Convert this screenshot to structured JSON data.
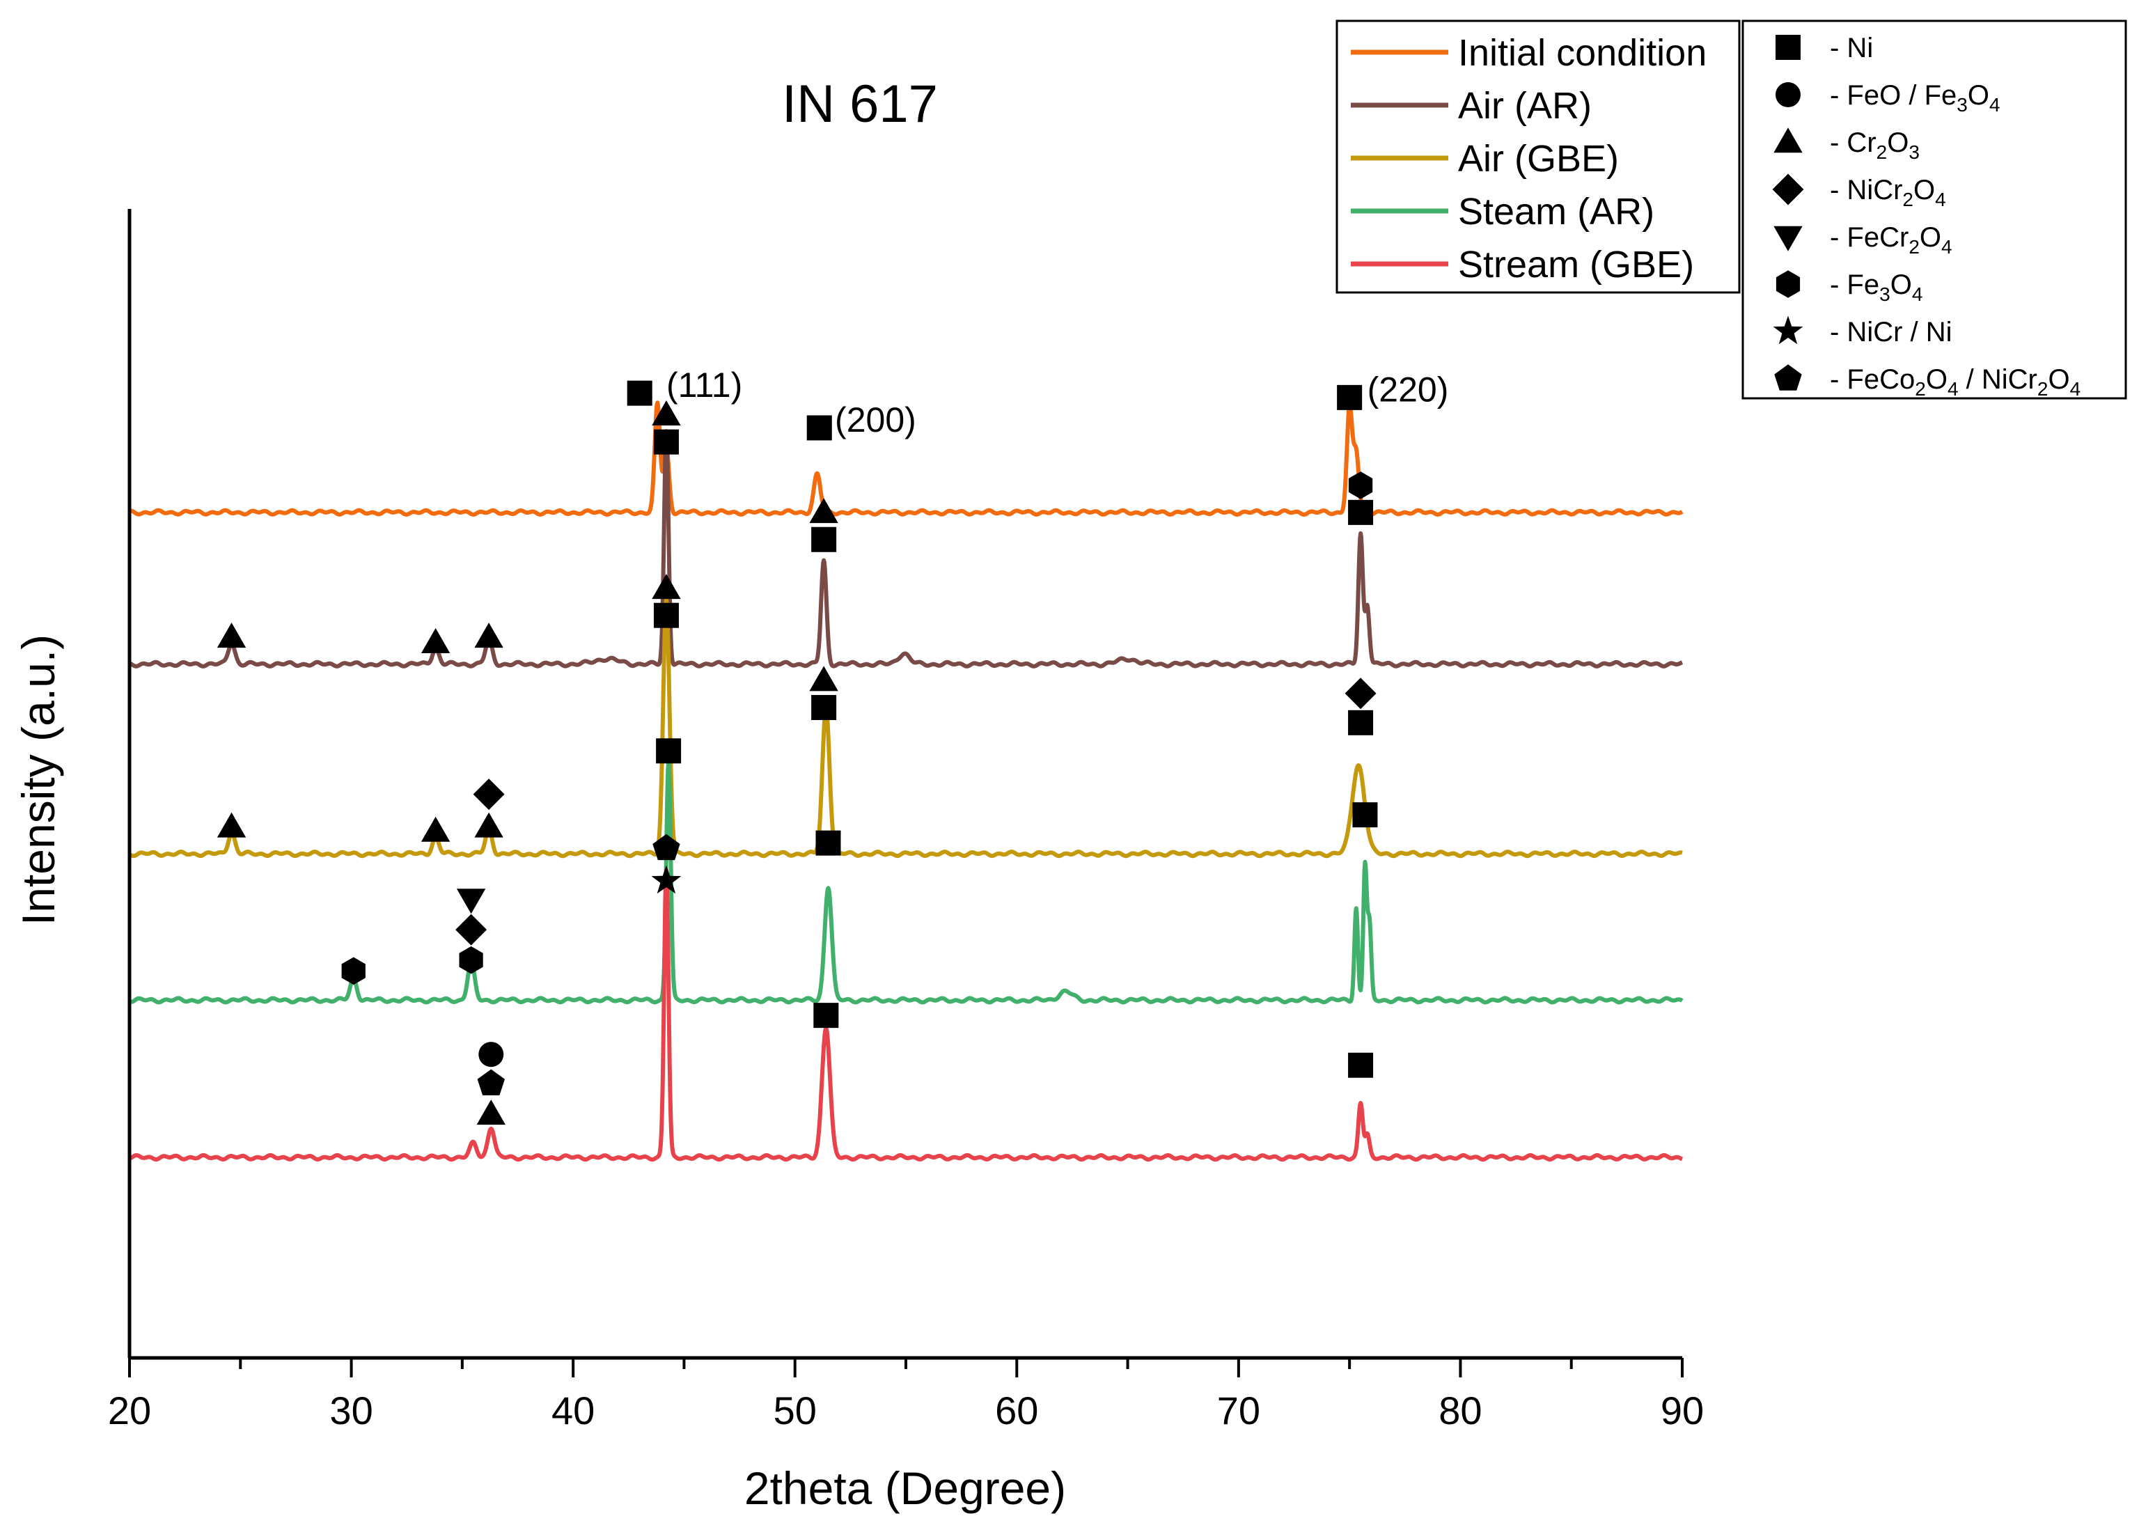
{
  "chart_data": {
    "type": "line",
    "title": "IN 617",
    "xlabel": "2theta (Degree)",
    "ylabel": "Intensity (a.u.)",
    "xlim": [
      20,
      90
    ],
    "xticks": [
      "20",
      "30",
      "40",
      "50",
      "60",
      "70",
      "80",
      "90"
    ],
    "yticks": [],
    "grid": false,
    "legend_position": "top-right",
    "series": [
      {
        "name": "Initial condition",
        "color": "#F26B0F",
        "baseline": 5.6,
        "noise": 0.02,
        "peaks": [
          {
            "x": 43.8,
            "h": 1.0,
            "w": 0.12
          },
          {
            "x": 44.2,
            "h": 0.6,
            "w": 0.12
          },
          {
            "x": 51.0,
            "h": 0.35,
            "w": 0.15
          },
          {
            "x": 75.0,
            "h": 0.95,
            "w": 0.12
          },
          {
            "x": 75.3,
            "h": 0.55,
            "w": 0.12
          }
        ]
      },
      {
        "name": "Air (AR)",
        "color": "#7A4A47",
        "baseline": 4.2,
        "noise": 0.02,
        "peaks": [
          {
            "x": 24.6,
            "h": 0.2,
            "w": 0.15
          },
          {
            "x": 33.8,
            "h": 0.15,
            "w": 0.15
          },
          {
            "x": 36.2,
            "h": 0.22,
            "w": 0.15
          },
          {
            "x": 41.5,
            "h": 0.05,
            "w": 0.5
          },
          {
            "x": 44.2,
            "h": 2.15,
            "w": 0.1
          },
          {
            "x": 51.3,
            "h": 0.95,
            "w": 0.12
          },
          {
            "x": 54.9,
            "h": 0.1,
            "w": 0.25
          },
          {
            "x": 65.0,
            "h": 0.05,
            "w": 0.4
          },
          {
            "x": 75.5,
            "h": 1.2,
            "w": 0.1
          },
          {
            "x": 75.8,
            "h": 0.55,
            "w": 0.1
          }
        ]
      },
      {
        "name": "Air (GBE)",
        "color": "#C49A0C",
        "baseline": 2.45,
        "noise": 0.02,
        "peaks": [
          {
            "x": 24.6,
            "h": 0.2,
            "w": 0.15
          },
          {
            "x": 33.8,
            "h": 0.15,
            "w": 0.15
          },
          {
            "x": 36.2,
            "h": 0.22,
            "w": 0.15
          },
          {
            "x": 44.2,
            "h": 2.35,
            "w": 0.14
          },
          {
            "x": 51.4,
            "h": 1.35,
            "w": 0.16
          },
          {
            "x": 75.4,
            "h": 0.82,
            "w": 0.28
          }
        ]
      },
      {
        "name": "Steam (AR)",
        "color": "#40B06A",
        "baseline": 1.1,
        "noise": 0.02,
        "peaks": [
          {
            "x": 30.1,
            "h": 0.2,
            "w": 0.15
          },
          {
            "x": 35.4,
            "h": 0.35,
            "w": 0.15
          },
          {
            "x": 44.3,
            "h": 2.2,
            "w": 0.1
          },
          {
            "x": 51.5,
            "h": 1.05,
            "w": 0.16
          },
          {
            "x": 62.2,
            "h": 0.08,
            "w": 0.3
          },
          {
            "x": 75.3,
            "h": 0.85,
            "w": 0.08
          },
          {
            "x": 75.7,
            "h": 1.25,
            "w": 0.08
          },
          {
            "x": 75.9,
            "h": 0.7,
            "w": 0.08
          }
        ]
      },
      {
        "name": "Stream (GBE)",
        "color": "#E8424A",
        "baseline": -0.35,
        "noise": 0.02,
        "peaks": [
          {
            "x": 35.5,
            "h": 0.13,
            "w": 0.15
          },
          {
            "x": 36.3,
            "h": 0.28,
            "w": 0.15
          },
          {
            "x": 44.2,
            "h": 2.65,
            "w": 0.1
          },
          {
            "x": 51.4,
            "h": 1.2,
            "w": 0.18
          },
          {
            "x": 75.5,
            "h": 0.5,
            "w": 0.1
          },
          {
            "x": 75.8,
            "h": 0.2,
            "w": 0.1
          }
        ]
      }
    ],
    "phase_legend": [
      {
        "symbol": "square",
        "parts": [
          [
            "- Ni",
            ""
          ]
        ]
      },
      {
        "symbol": "circle",
        "parts": [
          [
            "- FeO / Fe",
            ""
          ],
          [
            "3",
            "sub"
          ],
          [
            "O",
            ""
          ],
          [
            "4",
            "sub"
          ]
        ]
      },
      {
        "symbol": "triangle-up",
        "parts": [
          [
            "- Cr",
            ""
          ],
          [
            "2",
            "sub"
          ],
          [
            "O",
            ""
          ],
          [
            "3",
            "sub"
          ]
        ]
      },
      {
        "symbol": "diamond",
        "parts": [
          [
            "- NiCr",
            ""
          ],
          [
            "2",
            "sub"
          ],
          [
            "O",
            ""
          ],
          [
            "4",
            "sub"
          ]
        ]
      },
      {
        "symbol": "triangle-down",
        "parts": [
          [
            "- FeCr",
            ""
          ],
          [
            "2",
            "sub"
          ],
          [
            "O",
            ""
          ],
          [
            "4",
            "sub"
          ]
        ]
      },
      {
        "symbol": "hexagon",
        "parts": [
          [
            "- Fe",
            ""
          ],
          [
            "3",
            "sub"
          ],
          [
            "O",
            ""
          ],
          [
            "4",
            "sub"
          ]
        ]
      },
      {
        "symbol": "star",
        "parts": [
          [
            "- NiCr / Ni",
            ""
          ]
        ]
      },
      {
        "symbol": "pentagon",
        "parts": [
          [
            "- FeCo",
            ""
          ],
          [
            "2",
            "sub"
          ],
          [
            "O",
            ""
          ],
          [
            "4",
            "sub"
          ],
          [
            " / NiCr",
            ""
          ],
          [
            "2",
            "sub"
          ],
          [
            "O",
            ""
          ],
          [
            "4",
            "sub"
          ]
        ]
      }
    ],
    "annotations": [
      {
        "text": "(111)",
        "x": 44.2,
        "y": 6.75
      },
      {
        "text": "(200)",
        "x": 51.8,
        "y": 6.43
      },
      {
        "text": "(220)",
        "x": 75.8,
        "y": 6.71
      }
    ],
    "markers": [
      {
        "symbol": "square",
        "x": 43.0,
        "y": 6.7
      },
      {
        "symbol": "square",
        "x": 51.1,
        "y": 6.38
      },
      {
        "symbol": "square",
        "x": 75.0,
        "y": 6.66
      },
      {
        "symbol": "square",
        "x": 44.2,
        "y": 6.25
      },
      {
        "symbol": "triangle-up",
        "x": 44.2,
        "y": 6.5
      },
      {
        "symbol": "square",
        "x": 51.3,
        "y": 5.35
      },
      {
        "symbol": "triangle-up",
        "x": 51.3,
        "y": 5.6
      },
      {
        "symbol": "square",
        "x": 75.5,
        "y": 5.6
      },
      {
        "symbol": "hexagon",
        "x": 75.5,
        "y": 5.85
      },
      {
        "symbol": "triangle-up",
        "x": 24.6,
        "y": 4.45
      },
      {
        "symbol": "triangle-up",
        "x": 33.8,
        "y": 4.4
      },
      {
        "symbol": "triangle-up",
        "x": 36.2,
        "y": 4.45
      },
      {
        "symbol": "square",
        "x": 44.2,
        "y": 4.65
      },
      {
        "symbol": "triangle-up",
        "x": 44.2,
        "y": 4.9
      },
      {
        "symbol": "square",
        "x": 51.3,
        "y": 3.8
      },
      {
        "symbol": "triangle-up",
        "x": 51.3,
        "y": 4.05
      },
      {
        "symbol": "square",
        "x": 75.5,
        "y": 3.66
      },
      {
        "symbol": "diamond",
        "x": 75.5,
        "y": 3.93
      },
      {
        "symbol": "triangle-up",
        "x": 24.6,
        "y": 2.7
      },
      {
        "symbol": "triangle-up",
        "x": 33.8,
        "y": 2.66
      },
      {
        "symbol": "triangle-up",
        "x": 36.2,
        "y": 2.7
      },
      {
        "symbol": "diamond",
        "x": 36.2,
        "y": 3.0
      },
      {
        "symbol": "square",
        "x": 44.3,
        "y": 3.4
      },
      {
        "symbol": "square",
        "x": 51.5,
        "y": 2.55
      },
      {
        "symbol": "square",
        "x": 75.7,
        "y": 2.81
      },
      {
        "symbol": "hexagon",
        "x": 30.1,
        "y": 1.37
      },
      {
        "symbol": "hexagon",
        "x": 35.4,
        "y": 1.47
      },
      {
        "symbol": "diamond",
        "x": 35.4,
        "y": 1.75
      },
      {
        "symbol": "triangle-down",
        "x": 35.4,
        "y": 2.03
      },
      {
        "symbol": "star",
        "x": 44.2,
        "y": 2.2
      },
      {
        "symbol": "pentagon",
        "x": 44.2,
        "y": 2.5
      },
      {
        "symbol": "square",
        "x": 51.4,
        "y": 0.96
      },
      {
        "symbol": "square",
        "x": 75.5,
        "y": 0.5
      },
      {
        "symbol": "triangle-up",
        "x": 36.3,
        "y": 0.05
      },
      {
        "symbol": "pentagon",
        "x": 36.3,
        "y": 0.33
      },
      {
        "symbol": "circle",
        "x": 36.3,
        "y": 0.6
      }
    ]
  }
}
